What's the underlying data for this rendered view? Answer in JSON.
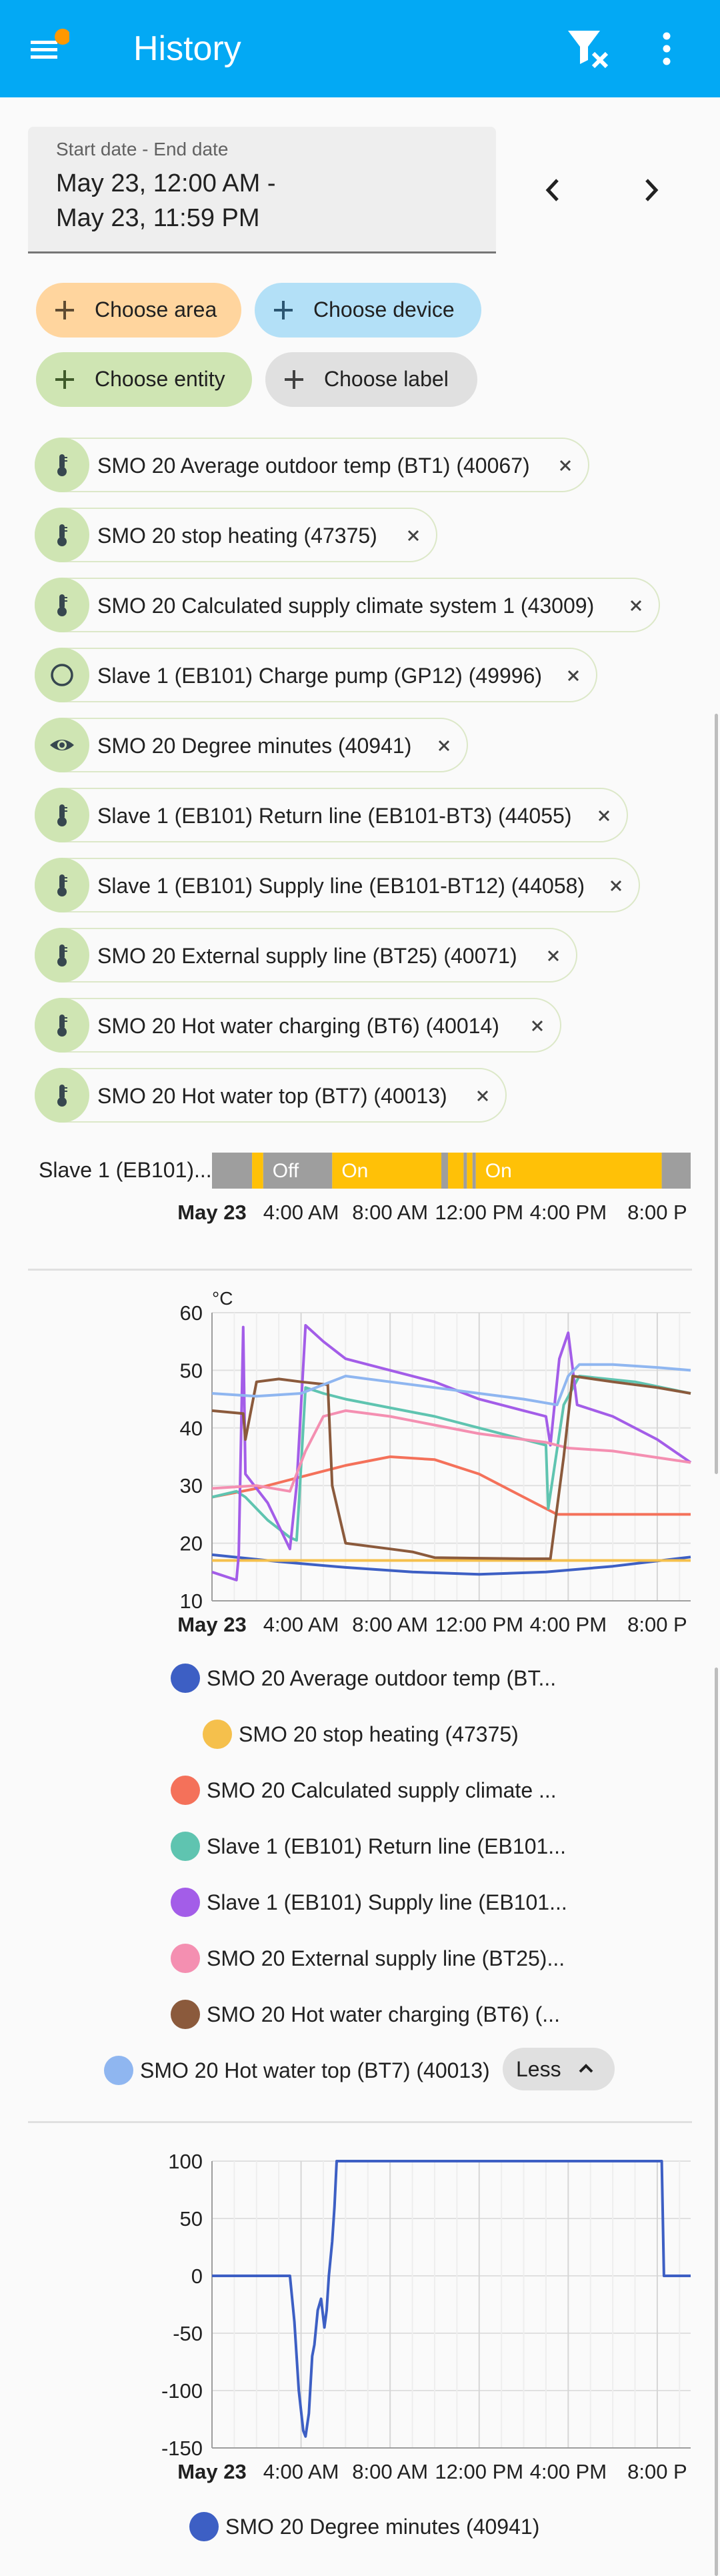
{
  "appbar": {
    "title": "History",
    "color": "#03a9f4"
  },
  "date_range": {
    "label": "Start date - End date",
    "start": "May 23, 12:00 AM -",
    "end": "May 23, 11:59 PM"
  },
  "pickers": [
    {
      "label": "Choose area",
      "color": "#ffd59e"
    },
    {
      "label": "Choose device",
      "color": "#b3e0f7"
    },
    {
      "label": "Choose entity",
      "color": "#cfe5b3"
    },
    {
      "label": "Choose label",
      "color": "#e0e0e0"
    }
  ],
  "entities": [
    {
      "label": "SMO 20 Average outdoor temp (BT1) (40067)",
      "icon": "thermometer-icon"
    },
    {
      "label": "SMO 20 stop heating (47375)",
      "icon": "thermometer-icon"
    },
    {
      "label": "SMO 20 Calculated supply climate system 1 (43009)",
      "icon": "thermometer-icon"
    },
    {
      "label": "Slave 1 (EB101) Charge pump (GP12) (49996)",
      "icon": "circle-outline-icon"
    },
    {
      "label": "SMO 20 Degree minutes (40941)",
      "icon": "eye-icon"
    },
    {
      "label": "Slave 1 (EB101) Return line (EB101-BT3) (44055)",
      "icon": "thermometer-icon"
    },
    {
      "label": "Slave 1 (EB101) Supply line (EB101-BT12) (44058)",
      "icon": "thermometer-icon"
    },
    {
      "label": "SMO 20 External supply line (BT25) (40071)",
      "icon": "thermometer-icon"
    },
    {
      "label": "SMO 20 Hot water charging (BT6) (40014)",
      "icon": "thermometer-icon"
    },
    {
      "label": "SMO 20 Hot water top (BT7) (40013)",
      "icon": "thermometer-icon"
    }
  ],
  "timeline": {
    "label": "Slave 1 (EB101)...",
    "segments": [
      {
        "start": 0,
        "end": 1.8,
        "state": "",
        "color": "#9e9e9e"
      },
      {
        "start": 1.8,
        "end": 2.3,
        "state": "",
        "color": "#ffc107"
      },
      {
        "start": 2.3,
        "end": 5.4,
        "state": "Off",
        "color": "#9e9e9e"
      },
      {
        "start": 5.4,
        "end": 10.3,
        "state": "On",
        "color": "#ffc107"
      },
      {
        "start": 10.3,
        "end": 10.6,
        "state": "",
        "color": "#9e9e9e"
      },
      {
        "start": 10.6,
        "end": 11.3,
        "state": "",
        "color": "#ffc107"
      },
      {
        "start": 11.3,
        "end": 11.45,
        "state": "",
        "color": "#9e9e9e"
      },
      {
        "start": 11.45,
        "end": 11.7,
        "state": "",
        "color": "#ffc107"
      },
      {
        "start": 11.7,
        "end": 11.85,
        "state": "",
        "color": "#9e9e9e"
      },
      {
        "start": 11.85,
        "end": 20.2,
        "state": "On",
        "color": "#ffc107"
      },
      {
        "start": 20.2,
        "end": 21.5,
        "state": "",
        "color": "#9e9e9e"
      }
    ]
  },
  "x_ticks": [
    "May 23",
    "4:00 AM",
    "8:00 AM",
    "12:00 PM",
    "4:00 PM",
    "8:00 P"
  ],
  "chart_data": [
    {
      "type": "line",
      "ylabel": "°C",
      "ylim": [
        10,
        60
      ],
      "yticks": [
        10,
        20,
        30,
        40,
        50,
        60
      ],
      "xlim": [
        0,
        21.5
      ],
      "series": [
        {
          "name": "SMO 20 Average outdoor temp (BT...",
          "color": "#3d5fc4",
          "points": [
            [
              0,
              18
            ],
            [
              3,
              16.8
            ],
            [
              6,
              15.8
            ],
            [
              9,
              15
            ],
            [
              12,
              14.6
            ],
            [
              15,
              15
            ],
            [
              18,
              16
            ],
            [
              21.5,
              17.6
            ]
          ]
        },
        {
          "name": "SMO 20 stop heating (47375)",
          "color": "#f5c04c",
          "points": [
            [
              0,
              17
            ],
            [
              21.5,
              17
            ]
          ]
        },
        {
          "name": "SMO 20 Calculated supply climate ...",
          "color": "#f4715a",
          "points": [
            [
              0,
              28
            ],
            [
              2,
              29.5
            ],
            [
              4,
              31.5
            ],
            [
              6,
              33.5
            ],
            [
              8,
              35
            ],
            [
              10,
              34.5
            ],
            [
              12,
              32
            ],
            [
              14,
              28
            ],
            [
              15.5,
              25
            ],
            [
              21.5,
              25
            ]
          ]
        },
        {
          "name": "Slave 1 (EB101) Return line (EB101...",
          "color": "#5fc4b0",
          "points": [
            [
              0,
              28
            ],
            [
              1.1,
              29
            ],
            [
              1.5,
              28
            ],
            [
              2.5,
              24
            ],
            [
              3.5,
              21
            ],
            [
              3.8,
              20.5
            ],
            [
              3.9,
              26.5
            ],
            [
              4.2,
              47
            ],
            [
              5,
              46
            ],
            [
              6,
              45
            ],
            [
              8,
              43.5
            ],
            [
              10,
              42
            ],
            [
              12,
              40
            ],
            [
              14,
              38
            ],
            [
              15,
              37
            ],
            [
              15.1,
              26
            ],
            [
              15.8,
              44
            ],
            [
              16.5,
              49
            ],
            [
              19,
              48
            ],
            [
              21.5,
              46
            ]
          ]
        },
        {
          "name": "Slave 1 (EB101) Supply line (EB101...",
          "color": "#a35de8",
          "points": [
            [
              0,
              15
            ],
            [
              1.1,
              13.6
            ],
            [
              1.2,
              18
            ],
            [
              1.4,
              57.5
            ],
            [
              1.5,
              32
            ],
            [
              2.5,
              27
            ],
            [
              3.5,
              19
            ],
            [
              3.8,
              30
            ],
            [
              4.2,
              57.8
            ],
            [
              5,
              55
            ],
            [
              6,
              52
            ],
            [
              8,
              50
            ],
            [
              10,
              48
            ],
            [
              12,
              45
            ],
            [
              14,
              43
            ],
            [
              15,
              42
            ],
            [
              15.2,
              37
            ],
            [
              15.6,
              52
            ],
            [
              16,
              56.5
            ],
            [
              16.4,
              44
            ],
            [
              18,
              42
            ],
            [
              20,
              38
            ],
            [
              21.5,
              34
            ]
          ]
        },
        {
          "name": "SMO 20 External supply line (BT25)...",
          "color": "#f48fb1",
          "points": [
            [
              0,
              29.5
            ],
            [
              2,
              30
            ],
            [
              3.5,
              29
            ],
            [
              4.2,
              36
            ],
            [
              5,
              42
            ],
            [
              6,
              43
            ],
            [
              8,
              42
            ],
            [
              10,
              40.5
            ],
            [
              12,
              39
            ],
            [
              14,
              38
            ],
            [
              15,
              37.5
            ],
            [
              16,
              36.5
            ],
            [
              18,
              36
            ],
            [
              21.5,
              34
            ]
          ]
        },
        {
          "name": "SMO 20 Hot water charging (BT6) (...",
          "color": "#8b5a3c",
          "points": [
            [
              0,
              43
            ],
            [
              1.4,
              42.5
            ],
            [
              1.5,
              38
            ],
            [
              2,
              48
            ],
            [
              3,
              48.5
            ],
            [
              4,
              48
            ],
            [
              5.2,
              47.5
            ],
            [
              5.4,
              30
            ],
            [
              6,
              20
            ],
            [
              8,
              19
            ],
            [
              9,
              18.5
            ],
            [
              10,
              17.5
            ],
            [
              12,
              17.4
            ],
            [
              14,
              17.3
            ],
            [
              15.2,
              17.3
            ],
            [
              15.8,
              35
            ],
            [
              16.2,
              49
            ],
            [
              18,
              48
            ],
            [
              20,
              47
            ],
            [
              21.5,
              46
            ]
          ]
        },
        {
          "name": "SMO 20 Hot water top (BT7) (40013)",
          "color": "#8fb6f0",
          "points": [
            [
              0,
              46
            ],
            [
              2,
              45.5
            ],
            [
              4,
              46
            ],
            [
              6,
              49
            ],
            [
              8,
              48
            ],
            [
              10,
              47
            ],
            [
              12,
              46
            ],
            [
              14,
              45
            ],
            [
              15.5,
              44
            ],
            [
              16,
              49
            ],
            [
              16.5,
              51
            ],
            [
              18,
              51
            ],
            [
              20,
              50.5
            ],
            [
              21.5,
              50
            ]
          ]
        }
      ]
    },
    {
      "type": "line",
      "ylim": [
        -150,
        100
      ],
      "yticks": [
        -150,
        -100,
        -50,
        0,
        50,
        100
      ],
      "xlim": [
        0,
        21.5
      ],
      "series": [
        {
          "name": "SMO 20 Degree minutes (40941)",
          "color": "#3d5fc4",
          "points": [
            [
              0,
              0
            ],
            [
              3.5,
              0
            ],
            [
              3.7,
              -40
            ],
            [
              3.9,
              -100
            ],
            [
              4.1,
              -135
            ],
            [
              4.2,
              -140
            ],
            [
              4.35,
              -120
            ],
            [
              4.5,
              -70
            ],
            [
              4.6,
              -60
            ],
            [
              4.75,
              -30
            ],
            [
              4.9,
              -20
            ],
            [
              5.05,
              -45
            ],
            [
              5.15,
              -30
            ],
            [
              5.25,
              0
            ],
            [
              5.4,
              30
            ],
            [
              5.5,
              60
            ],
            [
              5.6,
              100
            ],
            [
              20.2,
              100
            ],
            [
              20.3,
              0
            ],
            [
              21.5,
              0
            ]
          ]
        }
      ]
    }
  ],
  "show_less": {
    "label": "Less"
  }
}
